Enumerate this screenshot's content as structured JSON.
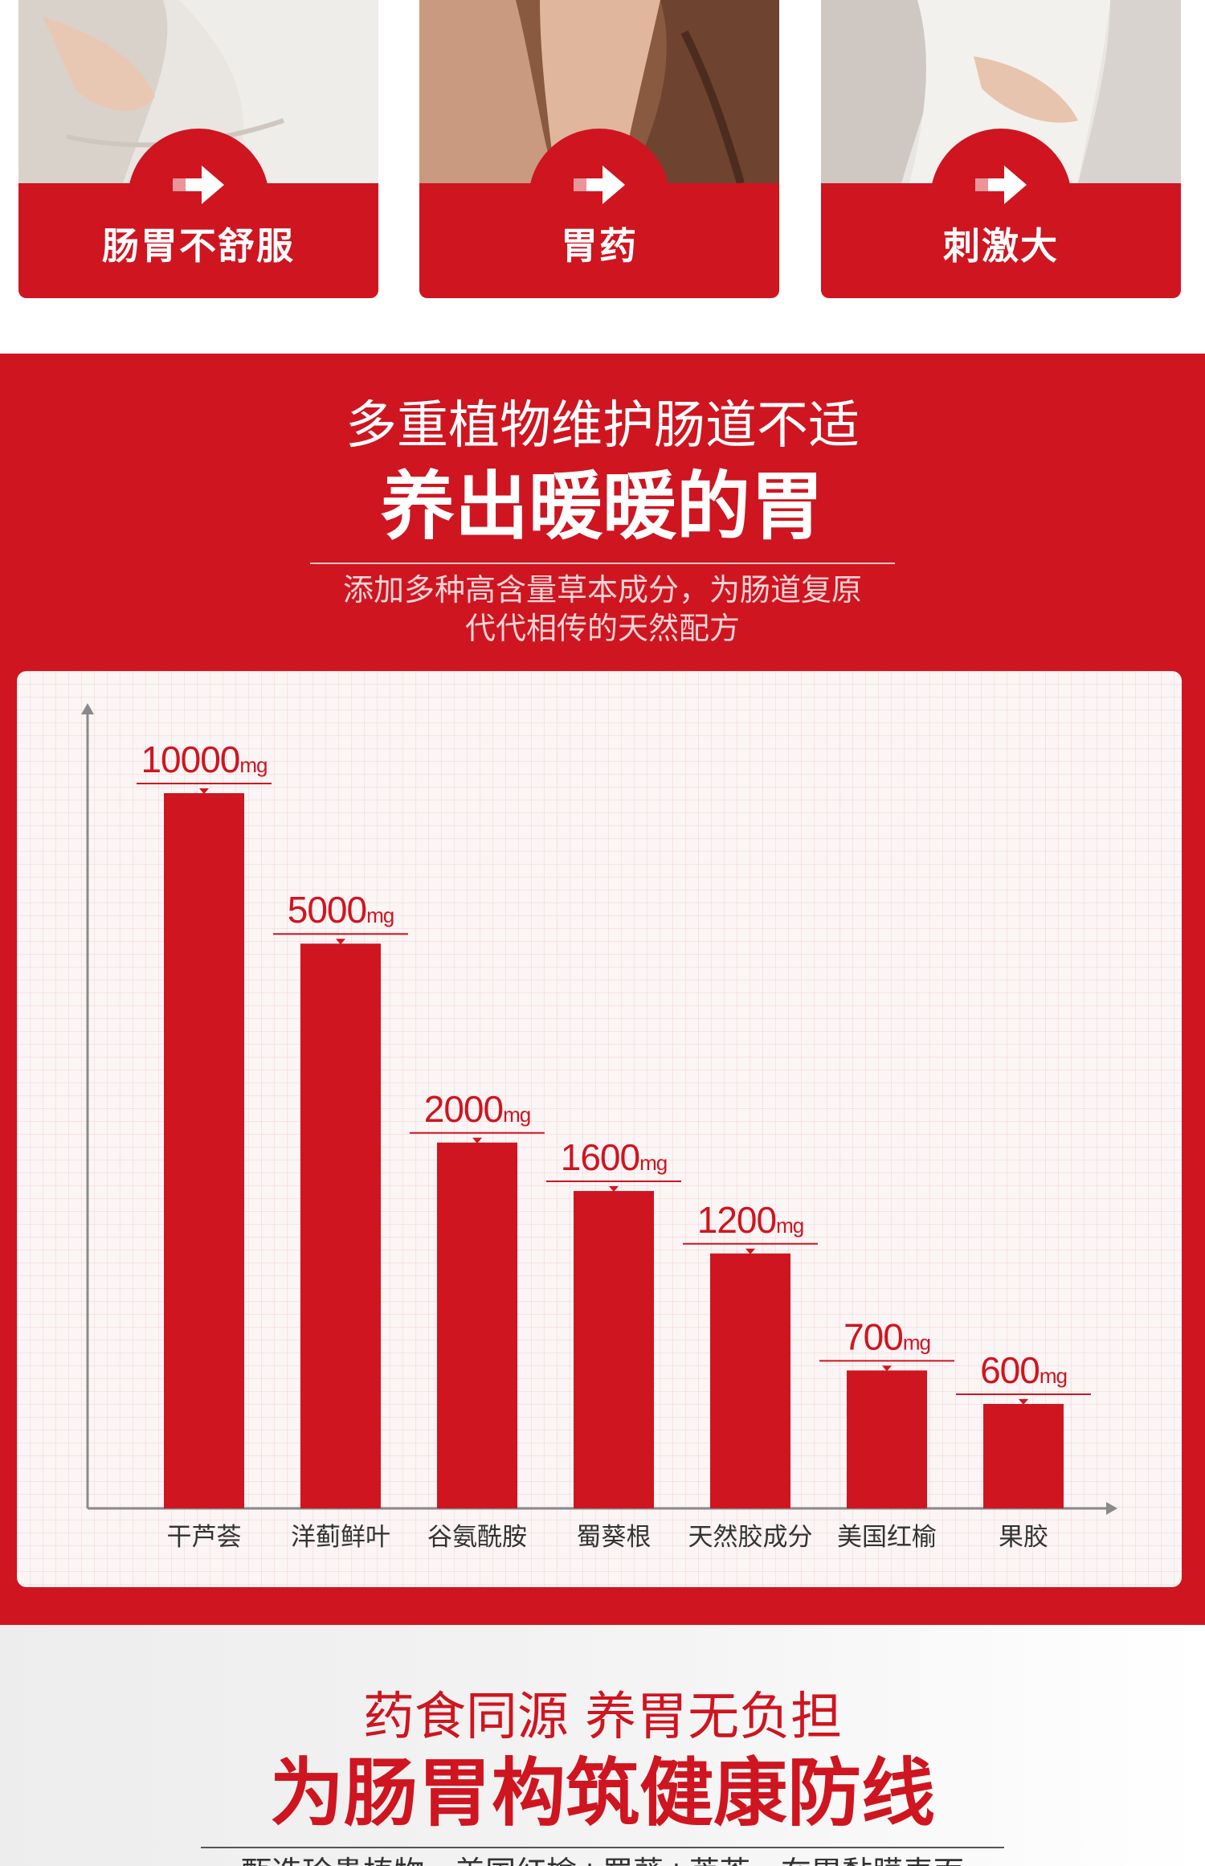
{
  "colors": {
    "brand_red": "#cf1520",
    "text_red": "#cf1520",
    "panel_bg": "#fbf5f5"
  },
  "cards": [
    {
      "label": "肠胃不舒服",
      "icon": "arrow-right-icon"
    },
    {
      "label": "胃药",
      "icon": "arrow-right-icon"
    },
    {
      "label": "刺激大",
      "icon": "arrow-right-icon"
    }
  ],
  "red_section": {
    "title": "多重植物维护肠道不适",
    "title_big": "养出暖暖的胃",
    "subtitle_line1": "添加多种高含量草本成分，为肠道复原",
    "subtitle_line2": "代代相传的天然配方"
  },
  "chart_data": {
    "type": "bar",
    "title": "",
    "xlabel": "",
    "ylabel": "",
    "unit": "mg",
    "categories": [
      "干芦荟",
      "洋蓟鲜叶",
      "谷氨酰胺",
      "蜀葵根",
      "天然胶成分",
      "美国红榆",
      "果胶"
    ],
    "values": [
      10000,
      5000,
      2000,
      1600,
      1200,
      700,
      600
    ],
    "value_labels": [
      "10000",
      "5000",
      "2000",
      "1600",
      "1200",
      "700",
      "600"
    ],
    "grid": true,
    "legend": "none"
  },
  "bottom_section": {
    "title": "药食同源 养胃无负担",
    "title_big": "为肠胃构筑健康防线",
    "subtitle": "甄选珍贵植物，美国红榆+蜀葵+芦荟，在胃黏膜表面"
  }
}
